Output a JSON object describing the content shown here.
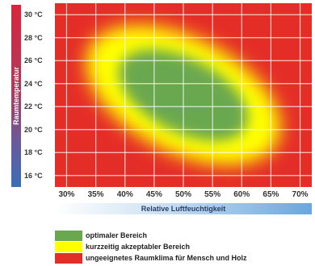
{
  "chart_data": {
    "type": "heatmap",
    "title": "",
    "xlabel": "Relative Luftfeuchtigkeit",
    "ylabel": "Raumtemperatur",
    "x_ticks": [
      "30%",
      "35%",
      "40%",
      "45%",
      "50%",
      "55%",
      "60%",
      "65%",
      "70%"
    ],
    "y_ticks": [
      "30 °C",
      "28 °C",
      "26 °C",
      "24 °C",
      "22 °C",
      "20 °C",
      "18 °C",
      "16 °C"
    ],
    "xlim": [
      28,
      72
    ],
    "ylim": [
      15,
      31
    ],
    "grid": true,
    "zones": [
      {
        "name": "optimaler Bereich",
        "color": "#6aa84f",
        "center": [
          50,
          23
        ],
        "rx": 12,
        "ry": 3.2,
        "angle_deg": 27
      },
      {
        "name": "kurzzeitig akzeptabler Bereich",
        "color": "#ffff00",
        "center": [
          50,
          23
        ],
        "rx": 18,
        "ry": 5,
        "angle_deg": 27
      },
      {
        "name": "ungeeignetes Raumklima für Mensch und Holz",
        "color": "#e52d27"
      }
    ]
  },
  "legend": [
    {
      "label": "optimaler Bereich",
      "color": "#6aa84f"
    },
    {
      "label": "kurzzeitig akzeptabler Bereich",
      "color": "#ffff00"
    },
    {
      "label": "ungeeignetes Raumklima für Mensch und Holz",
      "color": "#e52d27"
    }
  ]
}
